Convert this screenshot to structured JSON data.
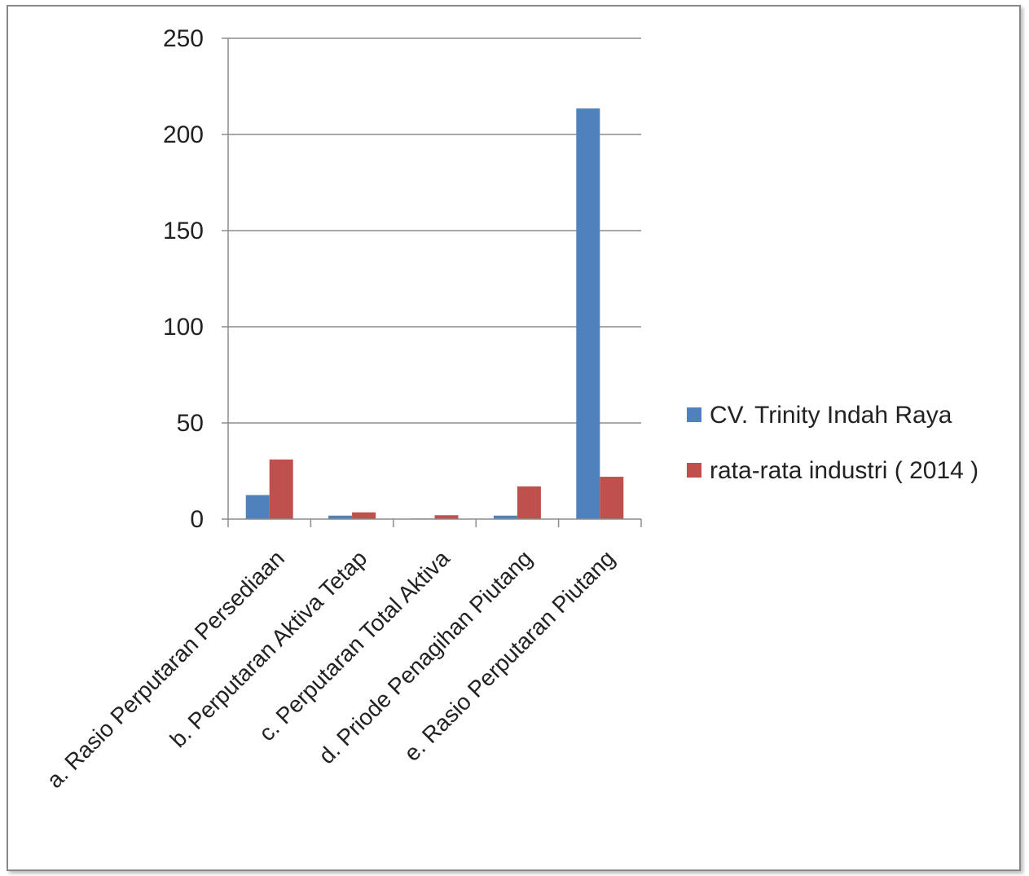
{
  "chart_data": {
    "type": "bar",
    "title": "",
    "xlabel": "",
    "ylabel": "",
    "ylim": [
      0,
      250
    ],
    "yticks": [
      0,
      50,
      100,
      150,
      200,
      250
    ],
    "grid": true,
    "legend_position": "right",
    "categories": [
      "a. Rasio Perputaran Persediaan",
      "b. Perputaran Aktiva Tetap",
      "c. Perputaran Total Aktiva",
      "d. Priode Penagihan Piutang",
      "e.  Rasio Perputaran Piutang"
    ],
    "series": [
      {
        "name": "CV. Trinity Indah Raya",
        "color": "#4F81BD",
        "values": [
          12.5,
          1.8,
          0.3,
          1.8,
          213.5
        ]
      },
      {
        "name": "rata-rata industri ( 2014 )",
        "color": "#C0504D",
        "values": [
          31,
          3.5,
          2,
          17,
          22
        ]
      }
    ]
  }
}
